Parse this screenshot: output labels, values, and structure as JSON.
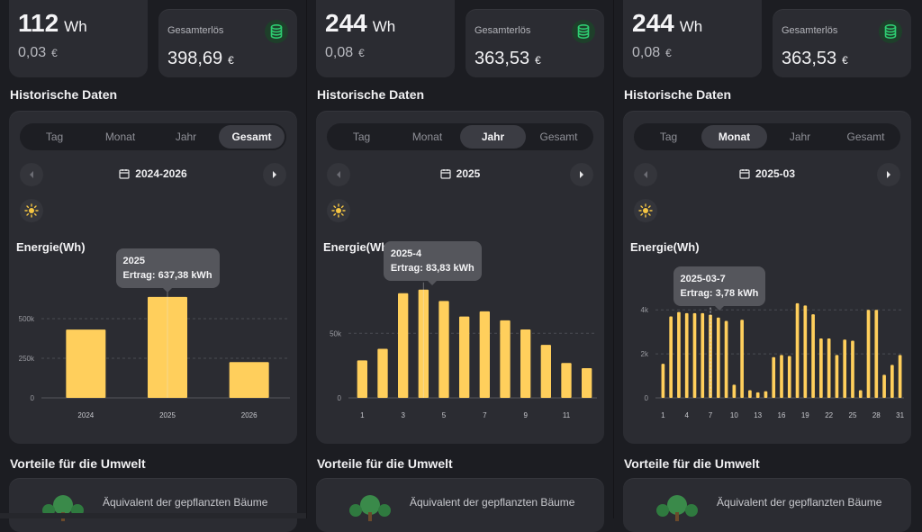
{
  "panels": [
    {
      "energy_value": "112",
      "energy_unit": "Wh",
      "earn_value": "0,03",
      "earn_currency": "€",
      "revenue_label": "Gesamterlös",
      "revenue_value": "398,69",
      "revenue_currency": "€",
      "section_title": "Historische Daten",
      "tabs": [
        "Tag",
        "Monat",
        "Jahr",
        "Gesamt"
      ],
      "active_tab": 3,
      "period": "2024-2026",
      "chart_title": "Energie(Wh)",
      "tooltip": {
        "line1": "2025",
        "line2": "Ertrag: 637,38 kWh"
      },
      "env_title": "Vorteile für die Umwelt",
      "env_text": "Äquivalent der gepflanzten Bäume"
    },
    {
      "energy_value": "244",
      "energy_unit": "Wh",
      "earn_value": "0,08",
      "earn_currency": "€",
      "revenue_label": "Gesamterlös",
      "revenue_value": "363,53",
      "revenue_currency": "€",
      "section_title": "Historische Daten",
      "tabs": [
        "Tag",
        "Monat",
        "Jahr",
        "Gesamt"
      ],
      "active_tab": 2,
      "period": "2025",
      "chart_title": "Energie(Wh)",
      "tooltip": {
        "line1": "2025-4",
        "line2": "Ertrag: 83,83 kWh"
      },
      "env_title": "Vorteile für die Umwelt",
      "env_text": "Äquivalent der gepflanzten Bäume"
    },
    {
      "energy_value": "244",
      "energy_unit": "Wh",
      "earn_value": "0,08",
      "earn_currency": "€",
      "revenue_label": "Gesamterlös",
      "revenue_value": "363,53",
      "revenue_currency": "€",
      "section_title": "Historische Daten",
      "tabs": [
        "Tag",
        "Monat",
        "Jahr",
        "Gesamt"
      ],
      "active_tab": 1,
      "period": "2025-03",
      "chart_title": "Energie(Wh)",
      "tooltip": {
        "line1": "2025-03-7",
        "line2": "Ertrag: 3,78 kWh"
      },
      "env_title": "Vorteile für die Umwelt",
      "env_text": "Äquivalent der gepflanzten Bäume"
    }
  ],
  "colors": {
    "bar": "#ffcf5c",
    "accent_green": "#2ecc71",
    "card": "#2b2c32"
  },
  "chart_data": [
    {
      "type": "bar",
      "title": "Energie(Wh)",
      "categories": [
        "2024",
        "2025",
        "2026"
      ],
      "values": [
        431000,
        637380,
        226000
      ],
      "ylim": [
        0,
        750000
      ],
      "yticks": [
        0,
        250000,
        500000
      ],
      "ytick_labels": [
        "0",
        "250k",
        "500k"
      ],
      "xtick_labels": [
        "2024",
        "2025",
        "2026"
      ],
      "highlight": 1,
      "grid": true
    },
    {
      "type": "bar",
      "title": "Energie(Wh)",
      "categories": [
        "1",
        "2",
        "3",
        "4",
        "5",
        "6",
        "7",
        "8",
        "9",
        "10",
        "11",
        "12"
      ],
      "values": [
        29000,
        38000,
        81000,
        83830,
        75000,
        63000,
        67000,
        60000,
        53000,
        41000,
        27000,
        23000
      ],
      "ylim": [
        0,
        92000
      ],
      "yticks": [
        0,
        50000
      ],
      "ytick_labels": [
        "0",
        "50k"
      ],
      "xtick_labels": [
        "1",
        "3",
        "5",
        "7",
        "9",
        "11"
      ],
      "highlight": 3,
      "grid": true
    },
    {
      "type": "bar",
      "title": "Energie(Wh)",
      "categories": [
        "1",
        "2",
        "3",
        "4",
        "5",
        "6",
        "7",
        "8",
        "9",
        "10",
        "11",
        "12",
        "13",
        "14",
        "15",
        "16",
        "17",
        "18",
        "19",
        "20",
        "21",
        "22",
        "23",
        "24",
        "25",
        "26",
        "27",
        "28",
        "29",
        "30",
        "31"
      ],
      "values": [
        1550,
        3700,
        3900,
        3850,
        3850,
        3850,
        3780,
        3650,
        3500,
        600,
        3550,
        350,
        250,
        300,
        1850,
        1950,
        1900,
        4300,
        4200,
        3800,
        2700,
        2700,
        1950,
        2650,
        2600,
        350,
        4000,
        4000,
        1050,
        1500,
        1950
      ],
      "ylim": [
        0,
        5400
      ],
      "yticks": [
        0,
        2000,
        4000
      ],
      "ytick_labels": [
        "0",
        "2k",
        "4k"
      ],
      "xtick_labels": [
        "1",
        "4",
        "7",
        "10",
        "13",
        "16",
        "19",
        "22",
        "25",
        "28",
        "31"
      ],
      "highlight": 6,
      "grid": true
    }
  ]
}
